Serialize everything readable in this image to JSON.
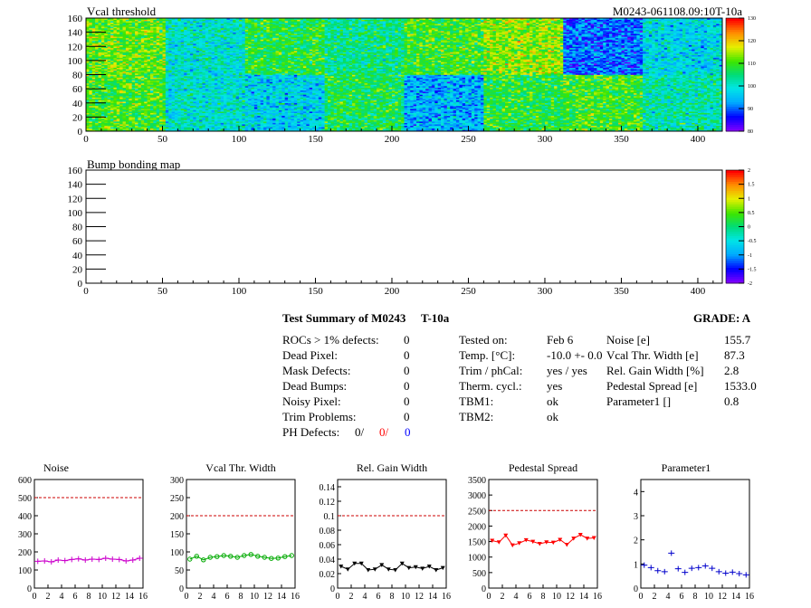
{
  "header": {
    "module_id": "M0243-061108.09:10T-10a"
  },
  "maps": [
    {
      "name": "Vcal threshold",
      "x_ticks": [
        "0",
        "50",
        "100",
        "150",
        "200",
        "250",
        "300",
        "350",
        "400"
      ],
      "y_ticks": [
        "0",
        "20",
        "40",
        "60",
        "80",
        "100",
        "120",
        "140",
        "160"
      ],
      "z_ticks": [
        "80",
        "90",
        "100",
        "110",
        "120",
        "130"
      ],
      "zlim": [
        80,
        130
      ],
      "roc_means_top": [
        112,
        100,
        108,
        104,
        110,
        114,
        90,
        98,
        102
      ],
      "roc_means_bottom": [
        110,
        100,
        97,
        107,
        94,
        108,
        110,
        102,
        103
      ]
    },
    {
      "name": "Bump bonding map",
      "x_ticks": [
        "0",
        "50",
        "100",
        "150",
        "200",
        "250",
        "300",
        "350",
        "400"
      ],
      "y_ticks": [
        "0",
        "20",
        "40",
        "60",
        "80",
        "100",
        "120",
        "140",
        "160"
      ],
      "z_ticks": [
        "-2",
        "-1.5",
        "-1",
        "-0.5",
        "0",
        "0.5",
        "1",
        "1.5",
        "2"
      ]
    }
  ],
  "summary": {
    "title": "Test Summary of M0243",
    "temp_label": "T-10a",
    "grade": "GRADE:  A",
    "defects": [
      {
        "label": "ROCs > 1% defects:",
        "value": "0"
      },
      {
        "label": "Dead Pixel:",
        "value": "0"
      },
      {
        "label": "Mask Defects:",
        "value": "0"
      },
      {
        "label": "Dead Bumps:",
        "value": "0"
      },
      {
        "label": "Noisy Pixel:",
        "value": "0"
      },
      {
        "label": "Trim Problems:",
        "value": "0"
      }
    ],
    "ph_defects": {
      "label": "PH Defects:",
      "v1": "0/",
      "v2": "0/",
      "v3": "0",
      "c2": "#ff0000",
      "c3": "#0000ff"
    },
    "conditions": [
      {
        "label": "Tested on:",
        "value": "Feb 6"
      },
      {
        "label": "Temp. [°C]:",
        "value": "-10.0 +- 0.0"
      },
      {
        "label": "Trim / phCal:",
        "value": "yes / yes"
      },
      {
        "label": "Therm. cycl.:",
        "value": "yes"
      },
      {
        "label": "TBM1:",
        "value": "ok"
      },
      {
        "label": "TBM2:",
        "value": "ok"
      }
    ],
    "results": [
      {
        "label": "Noise [e]",
        "value": "155.7"
      },
      {
        "label": "Vcal Thr. Width [e]",
        "value": "87.3"
      },
      {
        "label": "Rel. Gain Width [%]",
        "value": "2.8"
      },
      {
        "label": "Pedestal Spread [e]",
        "value": "1533.0"
      },
      {
        "label": "Parameter1 []",
        "value": "0.8"
      }
    ]
  },
  "chart_data": [
    {
      "type": "line",
      "title": "Noise",
      "color": "#cc00cc",
      "marker": "plus",
      "x": [
        0,
        1,
        2,
        3,
        4,
        5,
        6,
        7,
        8,
        9,
        10,
        11,
        12,
        13,
        14,
        15
      ],
      "values": [
        148,
        150,
        145,
        155,
        152,
        158,
        162,
        155,
        160,
        158,
        165,
        160,
        158,
        150,
        155,
        165
      ],
      "ylim": [
        0,
        600
      ],
      "yticks": [
        "0",
        "100",
        "200",
        "300",
        "400",
        "500",
        "600"
      ],
      "xticks": [
        "0",
        "2",
        "4",
        "6",
        "8",
        "10",
        "12",
        "14",
        "16"
      ],
      "xlim": [
        0,
        16
      ],
      "threshold": 500
    },
    {
      "type": "line",
      "title": "Vcal Thr. Width",
      "color": "#00aa00",
      "marker": "circle",
      "x": [
        0,
        1,
        2,
        3,
        4,
        5,
        6,
        7,
        8,
        9,
        10,
        11,
        12,
        13,
        14,
        15
      ],
      "values": [
        80,
        88,
        78,
        85,
        87,
        90,
        88,
        85,
        90,
        93,
        88,
        85,
        82,
        83,
        87,
        90
      ],
      "ylim": [
        0,
        300
      ],
      "yticks": [
        "0",
        "50",
        "100",
        "150",
        "200",
        "250",
        "300"
      ],
      "xticks": [
        "0",
        "2",
        "4",
        "6",
        "8",
        "10",
        "12",
        "14",
        "16"
      ],
      "xlim": [
        0,
        16
      ],
      "threshold": 200
    },
    {
      "type": "line",
      "title": "Rel. Gain Width",
      "color": "#000000",
      "marker": "triangle",
      "x": [
        0,
        1,
        2,
        3,
        4,
        5,
        6,
        7,
        8,
        9,
        10,
        11,
        12,
        13,
        14,
        15
      ],
      "values": [
        0.03,
        0.026,
        0.034,
        0.034,
        0.025,
        0.026,
        0.032,
        0.026,
        0.025,
        0.034,
        0.028,
        0.029,
        0.027,
        0.03,
        0.025,
        0.028
      ],
      "ylim": [
        0,
        0.15
      ],
      "yticks": [
        "0",
        "0.02",
        "0.04",
        "0.06",
        "0.08",
        "0.1",
        "0.12",
        "0.14"
      ],
      "ytick_values": [
        0,
        0.02,
        0.04,
        0.06,
        0.08,
        0.1,
        0.12,
        0.14
      ],
      "xticks": [
        "0",
        "2",
        "4",
        "6",
        "8",
        "10",
        "12",
        "14",
        "16"
      ],
      "xlim": [
        0,
        16
      ],
      "threshold": 0.1
    },
    {
      "type": "line",
      "title": "Pedestal Spread",
      "color": "#ff0000",
      "marker": "triangle",
      "x": [
        0,
        1,
        2,
        3,
        4,
        5,
        6,
        7,
        8,
        9,
        10,
        11,
        12,
        13,
        14,
        15
      ],
      "values": [
        1530,
        1480,
        1700,
        1380,
        1450,
        1550,
        1500,
        1430,
        1480,
        1470,
        1560,
        1400,
        1600,
        1720,
        1600,
        1620
      ],
      "ylim": [
        0,
        3500
      ],
      "yticks": [
        "0",
        "500",
        "1000",
        "1500",
        "2000",
        "2500",
        "3000",
        "3500"
      ],
      "xticks": [
        "0",
        "2",
        "4",
        "6",
        "8",
        "10",
        "12",
        "14",
        "16"
      ],
      "xlim": [
        0,
        16
      ],
      "threshold": 2500
    },
    {
      "type": "scatter",
      "title": "Parameter1",
      "color": "#0000cc",
      "marker": "plus",
      "x": [
        0,
        1,
        2,
        3,
        4,
        5,
        6,
        7,
        8,
        9,
        10,
        11,
        12,
        13,
        14,
        15
      ],
      "values": [
        0.95,
        0.85,
        0.72,
        0.68,
        1.45,
        0.8,
        0.65,
        0.82,
        0.85,
        0.92,
        0.82,
        0.68,
        0.62,
        0.66,
        0.6,
        0.55
      ],
      "ylim": [
        0,
        4.5
      ],
      "yticks": [
        "0",
        "1",
        "2",
        "3",
        "4"
      ],
      "ytick_values": [
        0,
        1,
        2,
        3,
        4
      ],
      "xticks": [
        "0",
        "2",
        "4",
        "6",
        "8",
        "10",
        "12",
        "14",
        "16"
      ],
      "xlim": [
        0,
        16
      ]
    }
  ]
}
